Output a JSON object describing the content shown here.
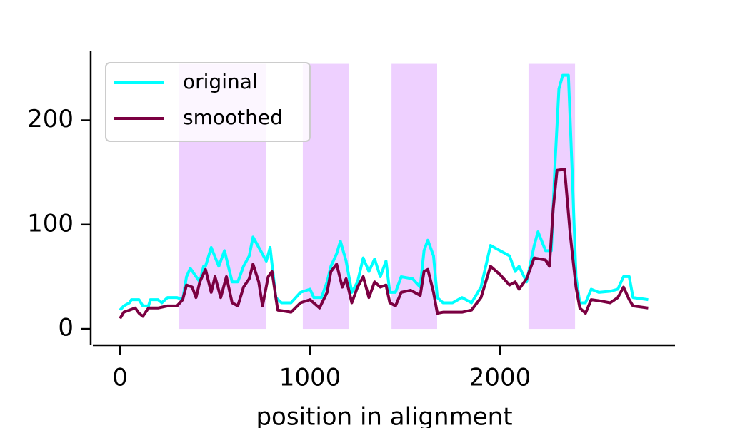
{
  "chart_data": {
    "type": "line",
    "xlabel": "position in alignment",
    "xlim": [
      -143,
      2921
    ],
    "ylim": [
      -15,
      266
    ],
    "xticks": [
      0,
      1000,
      2000
    ],
    "yticks": [
      0,
      100,
      200
    ],
    "legend": "upper left",
    "regions": {
      "color": "#eed0ff",
      "ylim": [
        0,
        254
      ],
      "spans": [
        [
          312,
          767
        ],
        [
          962,
          1203
        ],
        [
          1429,
          1669
        ],
        [
          2150,
          2395
        ]
      ]
    },
    "series": [
      {
        "name": "original",
        "color": "#00ffff",
        "x": [
          0,
          20,
          50,
          60,
          100,
          120,
          150,
          160,
          200,
          220,
          250,
          300,
          330,
          350,
          370,
          420,
          440,
          450,
          480,
          520,
          550,
          590,
          620,
          650,
          680,
          700,
          740,
          770,
          790,
          820,
          850,
          900,
          950,
          1000,
          1020,
          1060,
          1090,
          1110,
          1140,
          1160,
          1190,
          1220,
          1250,
          1280,
          1310,
          1340,
          1370,
          1400,
          1420,
          1450,
          1480,
          1540,
          1580,
          1600,
          1620,
          1650,
          1670,
          1700,
          1750,
          1800,
          1850,
          1900,
          1950,
          2000,
          2050,
          2080,
          2100,
          2140,
          2180,
          2200,
          2240,
          2270,
          2290,
          2310,
          2330,
          2360,
          2380,
          2400,
          2420,
          2450,
          2480,
          2520,
          2580,
          2620,
          2650,
          2680,
          2700,
          2780
        ],
        "values": [
          18,
          22,
          25,
          28,
          28,
          22,
          22,
          28,
          28,
          25,
          30,
          30,
          28,
          50,
          58,
          45,
          60,
          60,
          78,
          60,
          75,
          45,
          45,
          60,
          70,
          88,
          75,
          65,
          78,
          30,
          25,
          25,
          35,
          38,
          30,
          30,
          45,
          60,
          72,
          84,
          65,
          35,
          45,
          68,
          55,
          67,
          50,
          65,
          35,
          35,
          50,
          48,
          40,
          75,
          85,
          70,
          30,
          25,
          25,
          30,
          25,
          40,
          80,
          75,
          70,
          55,
          60,
          45,
          80,
          93,
          75,
          75,
          160,
          230,
          243,
          243,
          150,
          50,
          25,
          25,
          38,
          35,
          36,
          38,
          50,
          50,
          30,
          28
        ]
      },
      {
        "name": "smoothed",
        "color": "#7b0041",
        "x": [
          0,
          20,
          50,
          80,
          100,
          120,
          150,
          200,
          250,
          300,
          330,
          350,
          380,
          400,
          420,
          450,
          480,
          500,
          530,
          560,
          590,
          620,
          650,
          680,
          700,
          730,
          750,
          780,
          800,
          830,
          900,
          950,
          1000,
          1050,
          1090,
          1110,
          1140,
          1170,
          1190,
          1220,
          1250,
          1280,
          1310,
          1340,
          1370,
          1400,
          1420,
          1450,
          1480,
          1530,
          1580,
          1600,
          1620,
          1650,
          1670,
          1700,
          1800,
          1850,
          1900,
          1950,
          2000,
          2050,
          2080,
          2100,
          2140,
          2180,
          2240,
          2260,
          2280,
          2300,
          2340,
          2370,
          2400,
          2420,
          2450,
          2480,
          2520,
          2580,
          2620,
          2650,
          2680,
          2700,
          2780
        ],
        "values": [
          10,
          16,
          18,
          20,
          15,
          12,
          20,
          20,
          22,
          22,
          28,
          42,
          40,
          30,
          45,
          57,
          35,
          50,
          30,
          50,
          25,
          22,
          40,
          48,
          62,
          45,
          22,
          50,
          55,
          18,
          16,
          25,
          28,
          20,
          35,
          55,
          62,
          40,
          48,
          25,
          40,
          50,
          30,
          45,
          40,
          42,
          25,
          22,
          35,
          37,
          32,
          55,
          57,
          35,
          15,
          16,
          16,
          18,
          30,
          60,
          52,
          42,
          45,
          38,
          48,
          68,
          66,
          60,
          115,
          152,
          153,
          90,
          40,
          20,
          15,
          28,
          27,
          25,
          30,
          40,
          28,
          22,
          20
        ]
      }
    ]
  }
}
